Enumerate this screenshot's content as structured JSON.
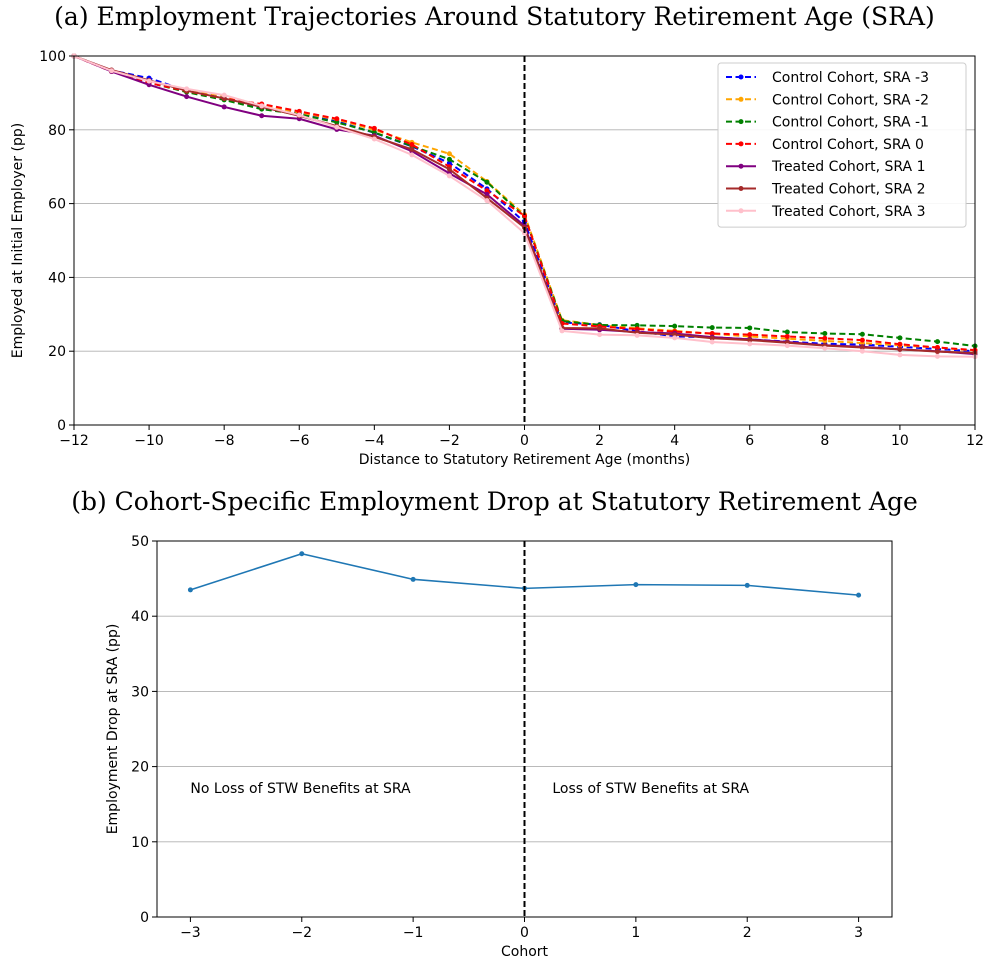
{
  "chart_data": [
    {
      "type": "line",
      "title": "(a) Employment Trajectories Around Statutory Retirement Age (SRA)",
      "xlabel": "Distance to Statutory Retirement Age (months)",
      "ylabel": "Employed at Initial Employer (pp)",
      "xlim": [
        -12,
        12
      ],
      "ylim": [
        0,
        100
      ],
      "xticks": [
        -12,
        -10,
        -8,
        -6,
        -4,
        -2,
        0,
        2,
        4,
        6,
        8,
        10,
        12
      ],
      "yticks": [
        0,
        20,
        40,
        60,
        80,
        100
      ],
      "grid": "horizontal",
      "legend_position": "top-right",
      "vline_x": 0,
      "x": [
        -12,
        -11,
        -10,
        -9,
        -8,
        -7,
        -6,
        -5,
        -4,
        -3,
        -2,
        -1,
        0,
        1,
        2,
        3,
        4,
        5,
        6,
        7,
        8,
        9,
        10,
        11,
        12
      ],
      "series": [
        {
          "name": "Control Cohort, SRA -3",
          "color": "#0000ff",
          "dashed": true,
          "values": [
            100,
            96.1,
            94.0,
            90.6,
            88.6,
            85.8,
            84.5,
            82.3,
            79.2,
            75.5,
            71.0,
            64.0,
            55.0,
            27.8,
            27.2,
            25.4,
            24.0,
            23.8,
            23.2,
            22.6,
            22.0,
            21.8,
            21.2,
            20.6,
            20.0
          ]
        },
        {
          "name": "Control Cohort, SRA -2",
          "color": "#ffa500",
          "dashed": true,
          "values": [
            100,
            96.0,
            93.2,
            90.8,
            89.2,
            86.6,
            84.7,
            82.8,
            80.0,
            76.6,
            73.5,
            66.0,
            57.0,
            28.4,
            27.1,
            26.2,
            25.5,
            24.7,
            24.0,
            23.4,
            22.8,
            22.2,
            21.6,
            21.0,
            20.2
          ]
        },
        {
          "name": "Control Cohort, SRA -1",
          "color": "#008000",
          "dashed": true,
          "values": [
            100,
            96.0,
            92.8,
            90.2,
            88.1,
            85.6,
            84.2,
            82.0,
            79.3,
            75.6,
            72.0,
            65.8,
            56.5,
            28.2,
            27.1,
            27.0,
            26.8,
            26.4,
            26.3,
            25.2,
            24.8,
            24.6,
            23.6,
            22.6,
            21.4
          ]
        },
        {
          "name": "Control Cohort, SRA 0",
          "color": "#ff0000",
          "dashed": true,
          "values": [
            100,
            95.8,
            92.7,
            90.5,
            88.5,
            87.0,
            85.0,
            83.0,
            80.4,
            76.0,
            70.0,
            63.5,
            56.7,
            27.5,
            26.7,
            26.0,
            25.3,
            24.8,
            24.5,
            24.0,
            23.5,
            23.0,
            21.9,
            21.0,
            20.3
          ]
        },
        {
          "name": "Treated Cohort, SRA 1",
          "color": "#800080",
          "dashed": false,
          "values": [
            100,
            95.8,
            92.2,
            89.0,
            86.2,
            83.8,
            83.0,
            80.1,
            78.4,
            74.2,
            68.2,
            62.5,
            54.0,
            26.1,
            25.8,
            25.2,
            24.8,
            23.8,
            23.2,
            22.5,
            21.6,
            21.2,
            20.5,
            20.0,
            19.2
          ]
        },
        {
          "name": "Treated Cohort, SRA 2",
          "color": "#a52a2a",
          "dashed": false,
          "values": [
            100,
            96.2,
            93.4,
            90.6,
            88.5,
            86.2,
            83.8,
            81.0,
            78.1,
            74.7,
            69.3,
            61.5,
            53.5,
            26.3,
            26.2,
            25.0,
            24.5,
            23.5,
            23.0,
            22.3,
            21.5,
            21.0,
            20.5,
            19.9,
            19.5
          ]
        },
        {
          "name": "Treated Cohort, SRA 3",
          "color": "#ffc0cb",
          "dashed": false,
          "values": [
            100,
            96.0,
            93.2,
            91.1,
            89.4,
            86.5,
            84.0,
            80.7,
            77.5,
            73.2,
            67.5,
            60.8,
            52.0,
            25.5,
            24.5,
            24.3,
            23.6,
            22.5,
            22.0,
            21.5,
            20.8,
            20.0,
            19.0,
            18.6,
            18.5
          ]
        }
      ]
    },
    {
      "type": "line",
      "title": "(b) Cohort-Specific Employment Drop at Statutory Retirement Age",
      "xlabel": "Cohort",
      "ylabel": "Employment Drop at SRA (pp)",
      "xlim": [
        -3.3,
        3.3
      ],
      "ylim": [
        0,
        50
      ],
      "xticks": [
        -3,
        -2,
        -1,
        0,
        1,
        2,
        3
      ],
      "yticks": [
        0,
        10,
        20,
        30,
        40,
        50
      ],
      "grid": "horizontal",
      "vline_x": 0,
      "x": [
        -3,
        -2,
        -1,
        0,
        1,
        2,
        3
      ],
      "series": [
        {
          "color": "#1f77b4",
          "values": [
            43.5,
            48.3,
            44.9,
            43.7,
            44.2,
            44.1,
            42.8
          ]
        }
      ],
      "annotations": [
        {
          "text": "No Loss of STW Benefits at SRA",
          "x": -3.0,
          "y": 16.5
        },
        {
          "text": "Loss of STW Benefits at SRA",
          "x": 0.25,
          "y": 16.5
        }
      ]
    }
  ]
}
